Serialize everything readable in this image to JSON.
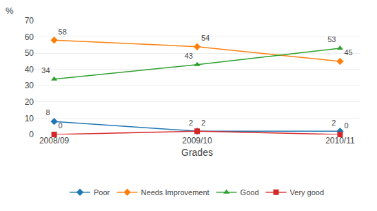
{
  "chart_data": {
    "type": "line",
    "categories": [
      "2008/09",
      "2009/10",
      "2010/11"
    ],
    "series": [
      {
        "name": "Poor",
        "values": [
          8,
          2,
          2
        ],
        "marker": "diamond"
      },
      {
        "name": "Needs Improvement",
        "values": [
          58,
          54,
          45
        ],
        "marker": "diamond"
      },
      {
        "name": "Good",
        "values": [
          34,
          43,
          53
        ],
        "marker": "triangle-up"
      },
      {
        "name": "Very good",
        "values": [
          0,
          2,
          0
        ],
        "marker": "square"
      }
    ],
    "ylabel": "%",
    "xlabel": "Grades",
    "ylim": [
      0,
      70
    ],
    "yticks": [
      0,
      10,
      20,
      30,
      40,
      50,
      60,
      70
    ],
    "grid": true,
    "legend": "bottom",
    "data_labels": true
  }
}
